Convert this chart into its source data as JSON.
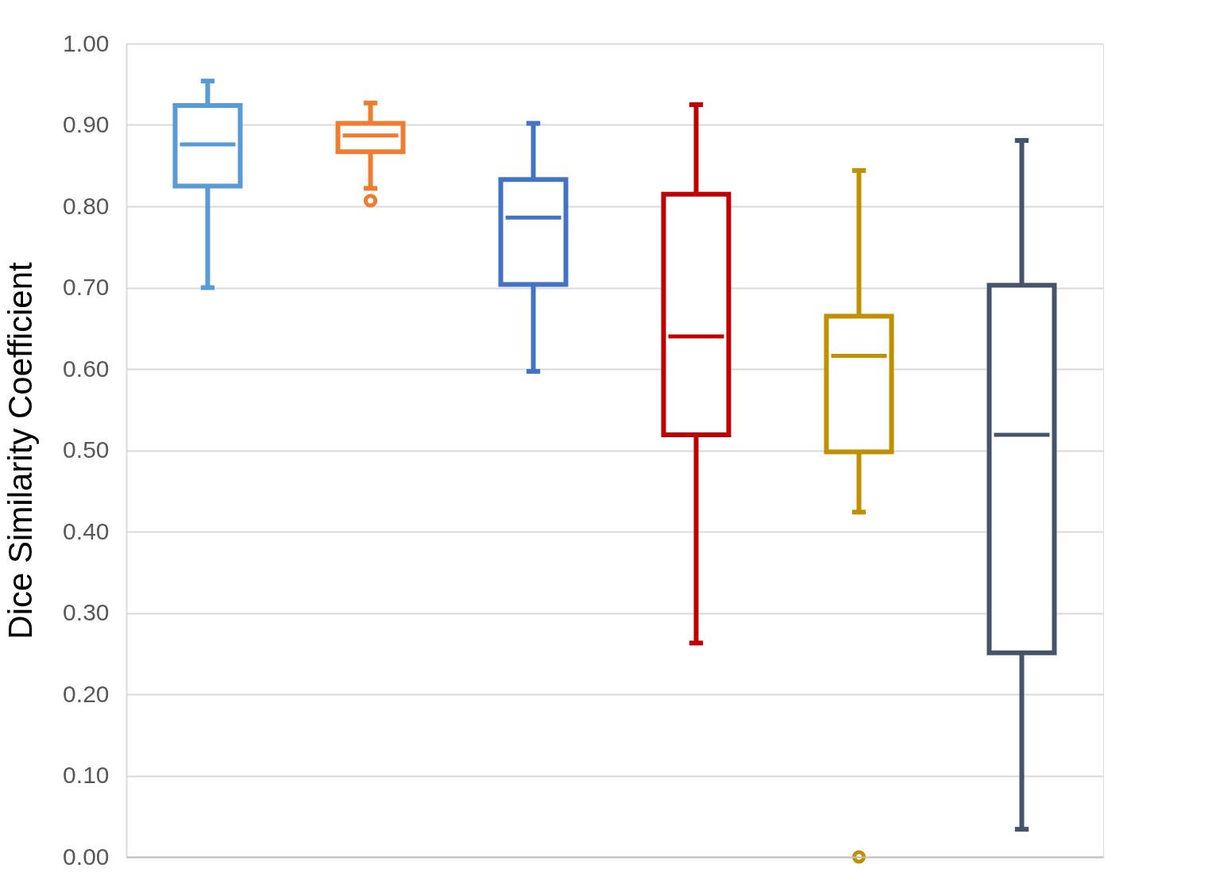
{
  "chart_data": {
    "type": "box",
    "ylabel": "Dice Similarity Coefficient",
    "categories": [
      null,
      null,
      null,
      null,
      null,
      null
    ],
    "colors": [
      "#5b9bd5",
      "#ed7d31",
      "#4472c4",
      "#c00000",
      "#bf9000",
      "#44546a"
    ],
    "boxes": [
      {
        "low": 0.7,
        "q1": 0.825,
        "median": 0.876,
        "q3": 0.924,
        "high": 0.954
      },
      {
        "low": 0.822,
        "q1": 0.867,
        "median": 0.887,
        "q3": 0.902,
        "high": 0.927,
        "outliers": [
          0.807
        ]
      },
      {
        "low": 0.597,
        "q1": 0.704,
        "median": 0.786,
        "q3": 0.833,
        "high": 0.902
      },
      {
        "low": 0.263,
        "q1": 0.519,
        "median": 0.64,
        "q3": 0.815,
        "high": 0.925
      },
      {
        "low": 0.424,
        "q1": 0.498,
        "median": 0.616,
        "q3": 0.665,
        "high": 0.844,
        "outliers": [
          0.0
        ]
      },
      {
        "low": 0.034,
        "q1": 0.251,
        "median": 0.519,
        "q3": 0.703,
        "high": 0.881
      }
    ],
    "ylim": [
      0,
      1
    ],
    "yticks": [
      {
        "value": 0,
        "label": "0.00"
      },
      {
        "value": 0.1,
        "label": "0.10"
      },
      {
        "value": 0.2,
        "label": "0.20"
      },
      {
        "value": 0.3,
        "label": "0.30"
      },
      {
        "value": 0.4,
        "label": "0.40"
      },
      {
        "value": 0.5,
        "label": "0.50"
      },
      {
        "value": 0.6,
        "label": "0.60"
      },
      {
        "value": 0.7,
        "label": "0.70"
      },
      {
        "value": 0.8,
        "label": "0.80"
      },
      {
        "value": 0.9,
        "label": "0.90"
      },
      {
        "value": 1,
        "label": "1.00"
      }
    ],
    "grid": "y",
    "tick_labels": "y"
  }
}
